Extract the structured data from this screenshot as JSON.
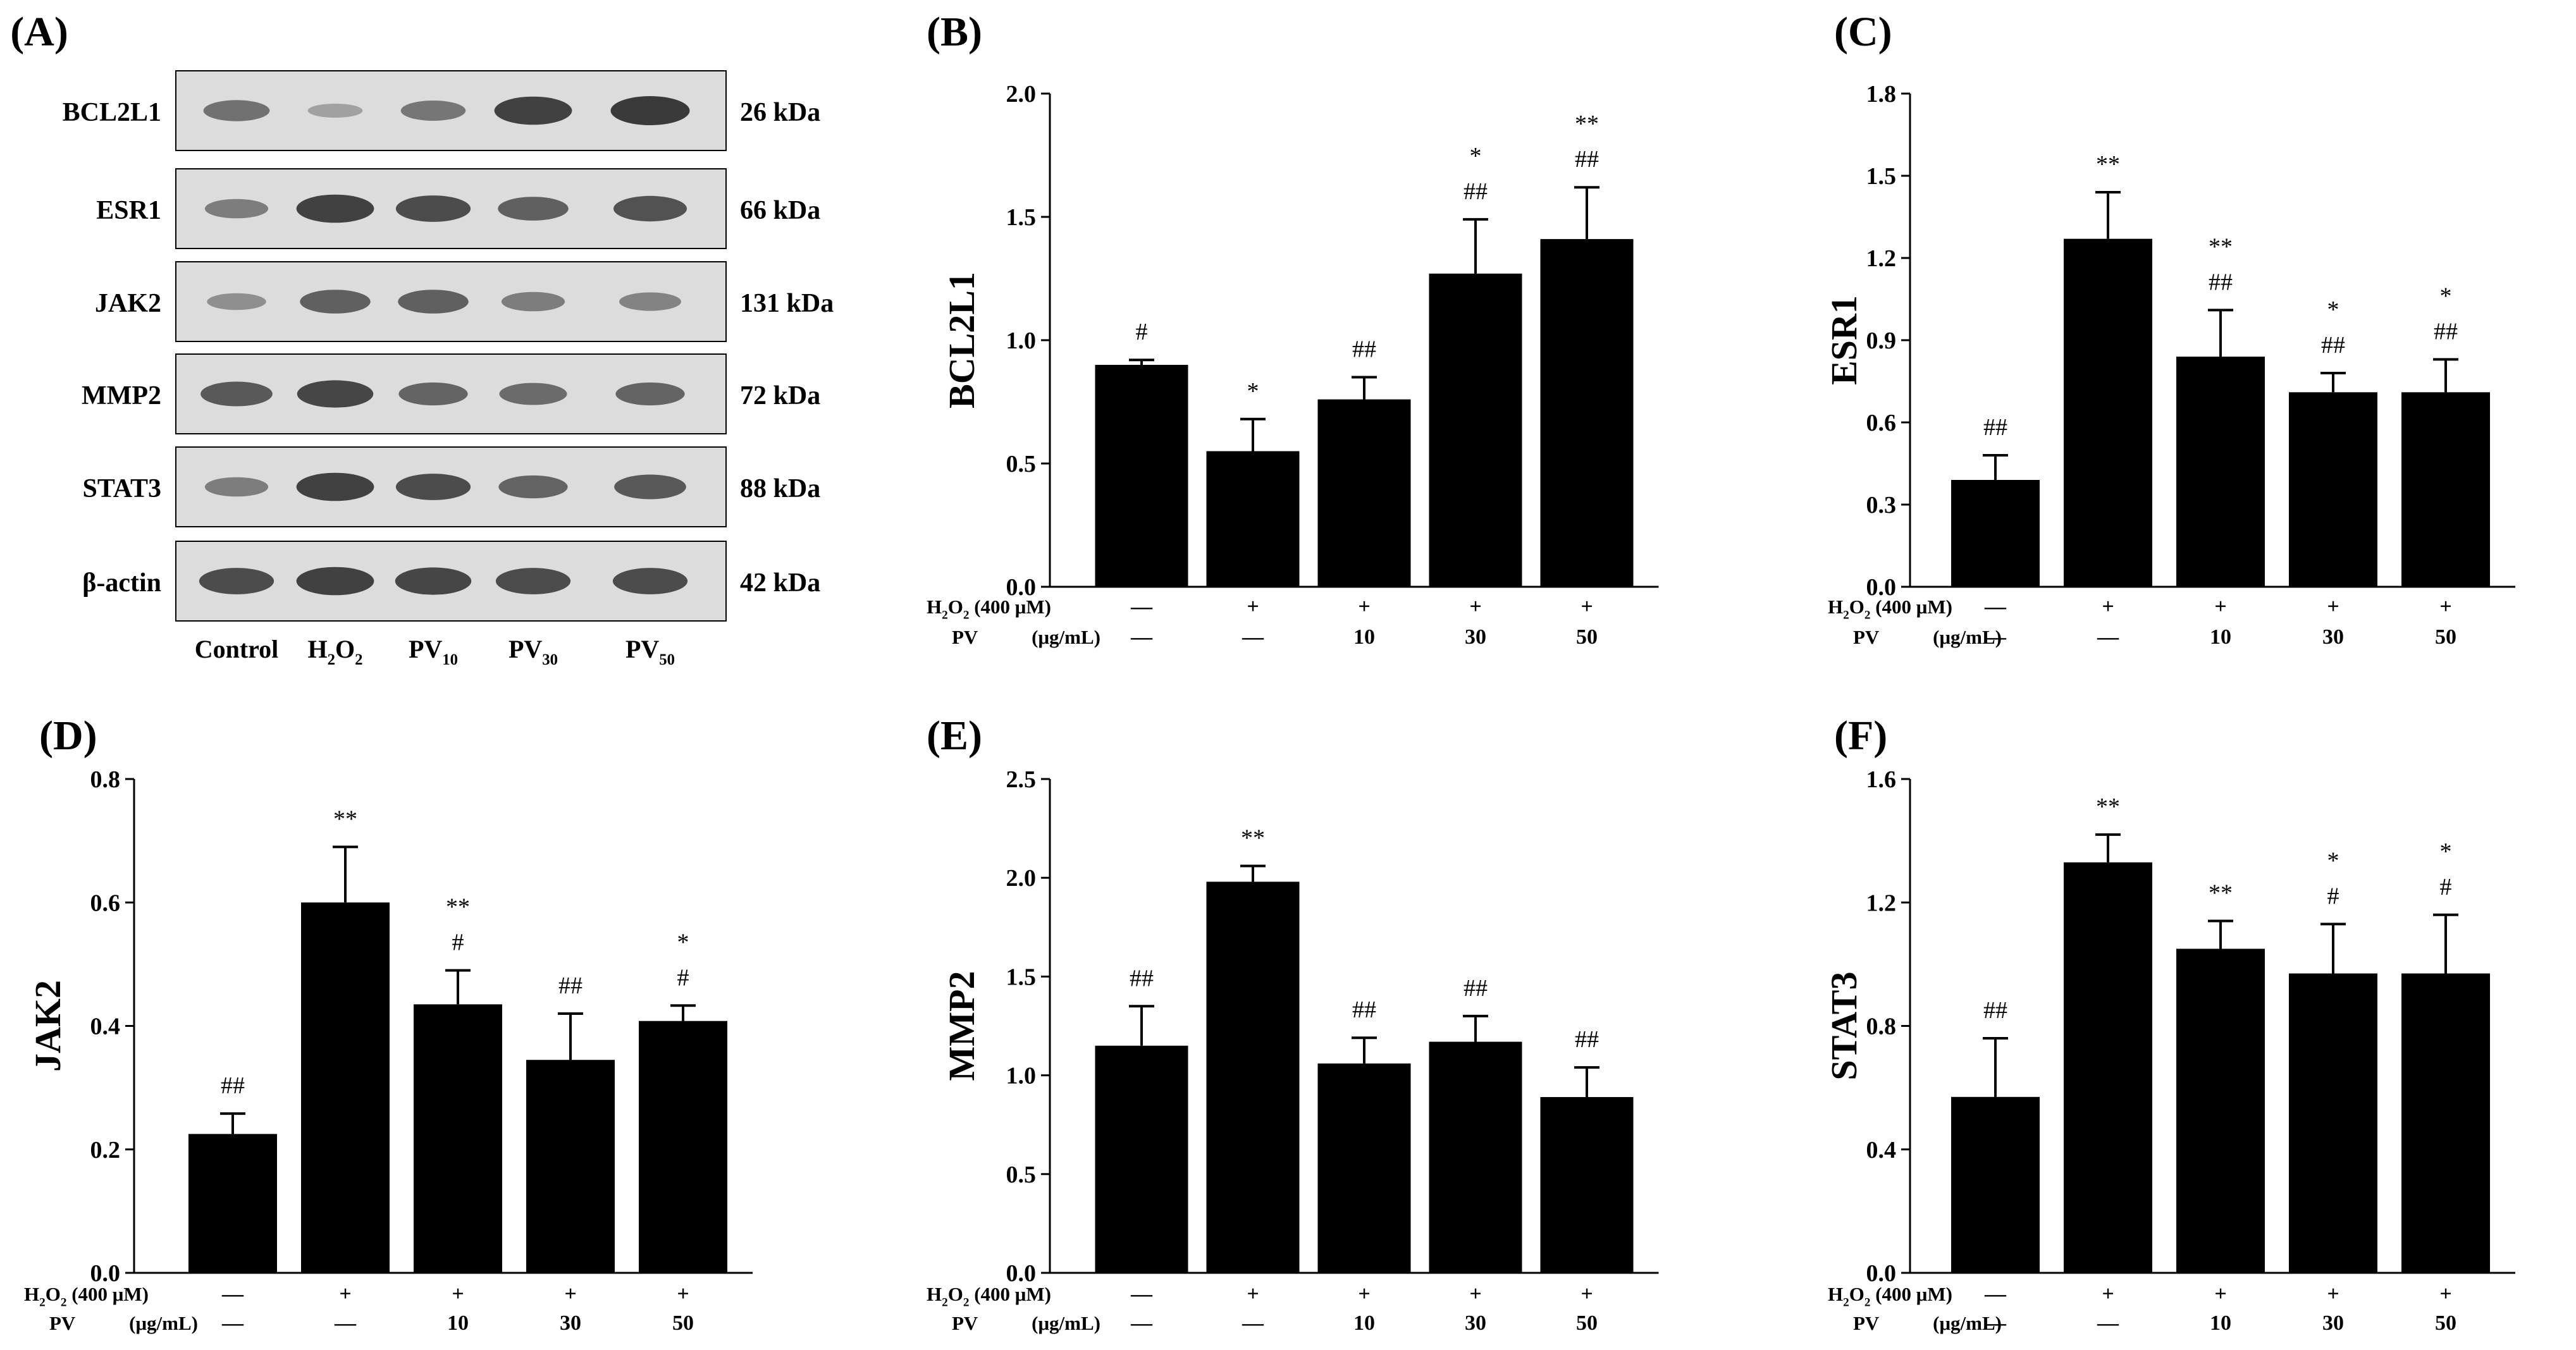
{
  "colors": {
    "bar": "#000000",
    "axis": "#000000",
    "text": "#000000",
    "blot_bg": "#dcdcdc",
    "band": "#3a3a3a"
  },
  "panel_A": {
    "letter": "(A)",
    "rows": [
      {
        "protein": "BCL2L1",
        "kda": "26 kDa",
        "intensity": [
          0.55,
          0.15,
          0.5,
          0.95,
          1.0
        ]
      },
      {
        "protein": "ESR1",
        "kda": "66 kDa",
        "intensity": [
          0.45,
          0.95,
          0.85,
          0.7,
          0.8
        ]
      },
      {
        "protein": "JAK2",
        "kda": "131 kDa",
        "intensity": [
          0.3,
          0.7,
          0.7,
          0.45,
          0.4
        ]
      },
      {
        "protein": "MMP2",
        "kda": "72 kDa",
        "intensity": [
          0.75,
          0.9,
          0.65,
          0.6,
          0.65
        ]
      },
      {
        "protein": "STAT3",
        "kda": "88 kDa",
        "intensity": [
          0.45,
          0.95,
          0.85,
          0.65,
          0.75
        ]
      },
      {
        "protein": "β-actin",
        "kda": "42 kDa",
        "intensity": [
          0.85,
          0.95,
          0.9,
          0.85,
          0.85
        ]
      }
    ],
    "lanes": [
      {
        "base": "Control",
        "sub": ""
      },
      {
        "base": "H",
        "sub": "2",
        "base2": "O",
        "sub2": "2"
      },
      {
        "base": "PV",
        "sub": "10"
      },
      {
        "base": "PV",
        "sub": "30"
      },
      {
        "base": "PV",
        "sub": "50"
      }
    ]
  },
  "treatment_table": {
    "h2o2_label": "(400 μM)",
    "pv_label": "PV",
    "pv_units": "(μg/mL)",
    "h2o2_row": [
      "—",
      "+",
      "+",
      "+",
      "+"
    ],
    "pv_row": [
      "—",
      "—",
      "10",
      "30",
      "50"
    ]
  },
  "chart_data": [
    {
      "panel": "(B)",
      "type": "bar",
      "ylabel": "BCL2L1",
      "ylim": [
        0,
        2.0
      ],
      "yticks": [
        "0.0",
        "0.5",
        "1.0",
        "1.5",
        "2.0"
      ],
      "values": [
        0.9,
        0.55,
        0.76,
        1.27,
        1.41
      ],
      "errors": [
        0.02,
        0.13,
        0.09,
        0.22,
        0.21
      ],
      "sig_upper": [
        "",
        "",
        "",
        "*",
        "**"
      ],
      "sig_lower": [
        "#",
        "*",
        "##",
        "##",
        "##"
      ]
    },
    {
      "panel": "(C)",
      "type": "bar",
      "ylabel": "ESR1",
      "ylim": [
        0,
        1.8
      ],
      "yticks": [
        "0.0",
        "0.3",
        "0.6",
        "0.9",
        "1.2",
        "1.5",
        "1.8"
      ],
      "values": [
        0.39,
        1.27,
        0.84,
        0.71,
        0.71
      ],
      "errors": [
        0.09,
        0.17,
        0.17,
        0.07,
        0.12
      ],
      "sig_upper": [
        "",
        "",
        "**",
        "*",
        "*"
      ],
      "sig_lower": [
        "##",
        "**",
        "##",
        "##",
        "##"
      ]
    },
    {
      "panel": "(D)",
      "type": "bar",
      "ylabel": "JAK2",
      "ylim": [
        0,
        0.8
      ],
      "yticks": [
        "0.0",
        "0.2",
        "0.4",
        "0.6",
        "0.8"
      ],
      "values": [
        0.225,
        0.6,
        0.435,
        0.345,
        0.408
      ],
      "errors": [
        0.033,
        0.09,
        0.055,
        0.075,
        0.025
      ],
      "sig_upper": [
        "",
        "",
        "**",
        "",
        "*"
      ],
      "sig_lower": [
        "##",
        "**",
        "#",
        "##",
        "#"
      ]
    },
    {
      "panel": "(E)",
      "type": "bar",
      "ylabel": "MMP2",
      "ylim": [
        0,
        2.5
      ],
      "yticks": [
        "0.0",
        "0.5",
        "1.0",
        "1.5",
        "2.0",
        "2.5"
      ],
      "values": [
        1.15,
        1.98,
        1.06,
        1.17,
        0.89
      ],
      "errors": [
        0.2,
        0.08,
        0.13,
        0.13,
        0.15
      ],
      "sig_upper": [
        "",
        "",
        "",
        "",
        ""
      ],
      "sig_lower": [
        "##",
        "**",
        "##",
        "##",
        "##"
      ]
    },
    {
      "panel": "(F)",
      "type": "bar",
      "ylabel": "STAT3",
      "ylim": [
        0,
        1.6
      ],
      "yticks": [
        "0.0",
        "0.4",
        "0.8",
        "1.2",
        "1.6"
      ],
      "values": [
        0.57,
        1.33,
        1.05,
        0.97,
        0.97
      ],
      "errors": [
        0.19,
        0.09,
        0.09,
        0.16,
        0.19
      ],
      "sig_upper": [
        "",
        "",
        "",
        "*",
        "*"
      ],
      "sig_lower": [
        "##",
        "**",
        "**",
        "#",
        "#"
      ]
    }
  ]
}
